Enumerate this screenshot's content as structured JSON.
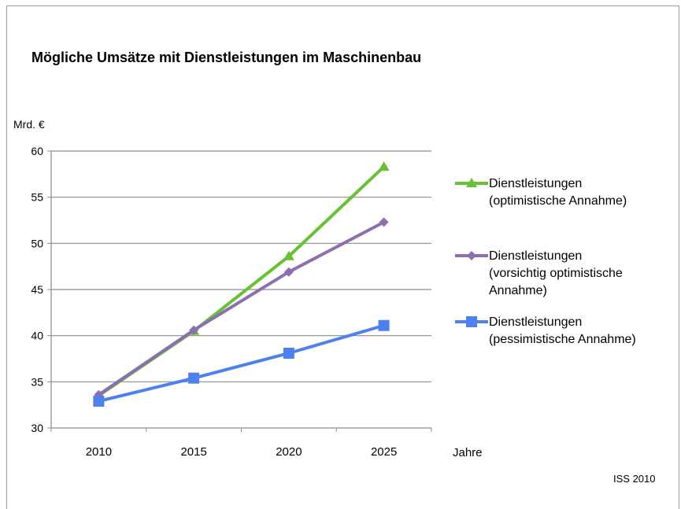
{
  "chart_data": {
    "type": "line",
    "title": "Mögliche Umsätze mit Dienstleistungen im Maschinenbau",
    "ylabel": "Mrd. €",
    "xlabel": "Jahre",
    "source": "ISS 2010",
    "ylim": [
      30,
      60
    ],
    "yticks": [
      30,
      35,
      40,
      45,
      50,
      55,
      60
    ],
    "categories": [
      "2010",
      "2015",
      "2020",
      "2025"
    ],
    "grid": true,
    "legend_position": "right",
    "series": [
      {
        "name_lines": [
          "Dienstleistungen",
          "(optimistische Annahme)"
        ],
        "values": [
          33.5,
          40.5,
          48.6,
          58.3
        ],
        "color": "#66c133",
        "marker": "triangle"
      },
      {
        "name_lines": [
          "Dienstleistungen",
          "(vorsichtig optimistische",
          "Annahme)"
        ],
        "values": [
          33.6,
          40.6,
          46.9,
          52.3
        ],
        "color": "#8d6fb0",
        "marker": "diamond"
      },
      {
        "name_lines": [
          "Dienstleistungen",
          "(pessimistische Annahme)"
        ],
        "values": [
          32.9,
          35.4,
          38.1,
          41.1
        ],
        "color": "#4e80f0",
        "marker": "square"
      }
    ]
  }
}
